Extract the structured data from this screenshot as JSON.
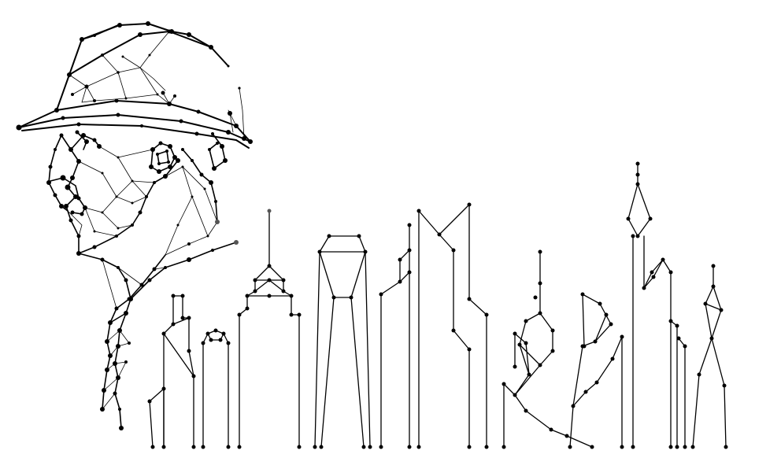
{
  "image": {
    "subject": "worker-in-hard-hat-with-skyline",
    "style": "plexus-wireframe",
    "colors": {
      "ink": "#000000",
      "background": "#ffffff",
      "soft_ink": "#555555"
    }
  }
}
